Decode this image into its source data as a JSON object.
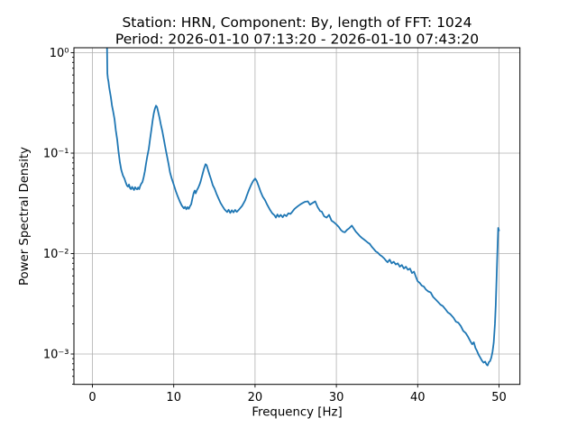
{
  "figure": {
    "background": "#ffffff"
  },
  "colors": {
    "line": "#1f77b4",
    "grid": "#b0b0b0",
    "axis": "#000000",
    "text": "#000000"
  },
  "chart_data": {
    "type": "line",
    "title_line1": "Station: HRN, Component: By, length of FFT: 1024",
    "title_line2": "Period: 2026-01-10 07:13:20 - 2026-01-10 07:43:20",
    "xlabel": "Frequency [Hz]",
    "ylabel": "Power Spectral Density",
    "x_tick_labels": [
      "0",
      "10",
      "20",
      "30",
      "40",
      "50"
    ],
    "y_tick_labels": [
      "10⁰",
      "10⁻¹",
      "10⁻²",
      "10⁻³"
    ],
    "x_ticks": [
      0,
      10,
      20,
      30,
      40,
      50
    ],
    "y_ticks": [
      1,
      0.1,
      0.01,
      0.001
    ],
    "xlim": [
      -2.3,
      52.7
    ],
    "ylim": [
      0.0005,
      1.12
    ],
    "y_scale": "log",
    "grid": true,
    "legend": false,
    "series": [
      {
        "name": "psd",
        "color": "#1f77b4",
        "points": [
          [
            1.8,
            1.12
          ],
          [
            1.82,
            0.8
          ],
          [
            1.84,
            0.62
          ],
          [
            1.9,
            0.555
          ],
          [
            1.97,
            0.52
          ],
          [
            2.05,
            0.46
          ],
          [
            2.15,
            0.41
          ],
          [
            2.27,
            0.36
          ],
          [
            2.4,
            0.3
          ],
          [
            2.55,
            0.26
          ],
          [
            2.72,
            0.218
          ],
          [
            2.88,
            0.168
          ],
          [
            3.05,
            0.136
          ],
          [
            3.2,
            0.105
          ],
          [
            3.38,
            0.081
          ],
          [
            3.55,
            0.068
          ],
          [
            3.75,
            0.06
          ],
          [
            3.94,
            0.0558
          ],
          [
            4.1,
            0.051
          ],
          [
            4.25,
            0.0475
          ],
          [
            4.38,
            0.0464
          ],
          [
            4.5,
            0.0487
          ],
          [
            4.62,
            0.045
          ],
          [
            4.75,
            0.0438
          ],
          [
            4.88,
            0.0462
          ],
          [
            5.0,
            0.0445
          ],
          [
            5.12,
            0.043
          ],
          [
            5.25,
            0.0458
          ],
          [
            5.38,
            0.0442
          ],
          [
            5.5,
            0.0436
          ],
          [
            5.62,
            0.0455
          ],
          [
            5.75,
            0.0438
          ],
          [
            5.88,
            0.0472
          ],
          [
            6.0,
            0.0495
          ],
          [
            6.15,
            0.0515
          ],
          [
            6.3,
            0.0575
          ],
          [
            6.45,
            0.066
          ],
          [
            6.6,
            0.079
          ],
          [
            6.75,
            0.093
          ],
          [
            6.93,
            0.11
          ],
          [
            7.1,
            0.14
          ],
          [
            7.25,
            0.17
          ],
          [
            7.4,
            0.21
          ],
          [
            7.55,
            0.25
          ],
          [
            7.7,
            0.28
          ],
          [
            7.82,
            0.297
          ],
          [
            7.95,
            0.287
          ],
          [
            8.1,
            0.255
          ],
          [
            8.25,
            0.225
          ],
          [
            8.4,
            0.195
          ],
          [
            8.6,
            0.165
          ],
          [
            8.8,
            0.135
          ],
          [
            9.0,
            0.11
          ],
          [
            9.15,
            0.0955
          ],
          [
            9.35,
            0.079
          ],
          [
            9.55,
            0.064
          ],
          [
            9.75,
            0.056
          ],
          [
            10.03,
            0.0478
          ],
          [
            10.25,
            0.042
          ],
          [
            10.5,
            0.037
          ],
          [
            10.75,
            0.033
          ],
          [
            11.0,
            0.03
          ],
          [
            11.25,
            0.0282
          ],
          [
            11.4,
            0.0292
          ],
          [
            11.55,
            0.0276
          ],
          [
            11.7,
            0.029
          ],
          [
            11.85,
            0.0279
          ],
          [
            12.0,
            0.0296
          ],
          [
            12.15,
            0.031
          ],
          [
            12.3,
            0.0355
          ],
          [
            12.45,
            0.04
          ],
          [
            12.58,
            0.0424
          ],
          [
            12.7,
            0.0398
          ],
          [
            12.85,
            0.0428
          ],
          [
            13.0,
            0.045
          ],
          [
            13.15,
            0.048
          ],
          [
            13.3,
            0.052
          ],
          [
            13.5,
            0.06
          ],
          [
            13.7,
            0.069
          ],
          [
            13.91,
            0.0776
          ],
          [
            14.05,
            0.0758
          ],
          [
            14.2,
            0.069
          ],
          [
            14.4,
            0.061
          ],
          [
            14.6,
            0.0545
          ],
          [
            14.8,
            0.048
          ],
          [
            15.02,
            0.0443
          ],
          [
            15.25,
            0.0395
          ],
          [
            15.5,
            0.0355
          ],
          [
            15.75,
            0.032
          ],
          [
            16.0,
            0.0296
          ],
          [
            16.25,
            0.0275
          ],
          [
            16.57,
            0.0259
          ],
          [
            16.75,
            0.0273
          ],
          [
            16.95,
            0.0254
          ],
          [
            17.15,
            0.027
          ],
          [
            17.35,
            0.0257
          ],
          [
            17.55,
            0.0272
          ],
          [
            17.75,
            0.026
          ],
          [
            17.95,
            0.027
          ],
          [
            18.15,
            0.0282
          ],
          [
            18.4,
            0.0298
          ],
          [
            18.6,
            0.0318
          ],
          [
            18.79,
            0.034
          ],
          [
            19.0,
            0.038
          ],
          [
            19.25,
            0.043
          ],
          [
            19.5,
            0.048
          ],
          [
            19.75,
            0.0525
          ],
          [
            20.01,
            0.0559
          ],
          [
            20.2,
            0.053
          ],
          [
            20.45,
            0.0468
          ],
          [
            20.7,
            0.041
          ],
          [
            20.95,
            0.0368
          ],
          [
            21.23,
            0.034
          ],
          [
            21.5,
            0.0306
          ],
          [
            21.8,
            0.0276
          ],
          [
            22.1,
            0.0253
          ],
          [
            22.4,
            0.024
          ],
          [
            22.56,
            0.0228
          ],
          [
            22.75,
            0.0245
          ],
          [
            22.95,
            0.0232
          ],
          [
            23.15,
            0.0243
          ],
          [
            23.4,
            0.023
          ],
          [
            23.6,
            0.0244
          ],
          [
            23.85,
            0.0236
          ],
          [
            24.1,
            0.0252
          ],
          [
            24.35,
            0.0248
          ],
          [
            24.6,
            0.0262
          ],
          [
            24.85,
            0.0278
          ],
          [
            25.1,
            0.0289
          ],
          [
            25.35,
            0.03
          ],
          [
            25.6,
            0.031
          ],
          [
            25.89,
            0.032
          ],
          [
            26.15,
            0.0328
          ],
          [
            26.5,
            0.0331
          ],
          [
            26.75,
            0.0307
          ],
          [
            27.1,
            0.032
          ],
          [
            27.4,
            0.0331
          ],
          [
            27.7,
            0.029
          ],
          [
            28.0,
            0.0265
          ],
          [
            28.2,
            0.0262
          ],
          [
            28.5,
            0.0235
          ],
          [
            28.8,
            0.0228
          ],
          [
            29.1,
            0.0243
          ],
          [
            29.4,
            0.0213
          ],
          [
            29.7,
            0.0205
          ],
          [
            30.0,
            0.0195
          ],
          [
            30.3,
            0.0184
          ],
          [
            30.55,
            0.0172
          ],
          [
            30.8,
            0.0165
          ],
          [
            31.05,
            0.0163
          ],
          [
            31.3,
            0.0172
          ],
          [
            31.55,
            0.0178
          ],
          [
            31.9,
            0.019
          ],
          [
            32.15,
            0.0177
          ],
          [
            32.4,
            0.0165
          ],
          [
            32.65,
            0.0157
          ],
          [
            32.9,
            0.0149
          ],
          [
            33.15,
            0.0143
          ],
          [
            33.4,
            0.0138
          ],
          [
            33.65,
            0.0133
          ],
          [
            33.9,
            0.0128
          ],
          [
            34.1,
            0.0125
          ],
          [
            34.35,
            0.0117
          ],
          [
            34.6,
            0.0111
          ],
          [
            34.85,
            0.0105
          ],
          [
            35.1,
            0.0102
          ],
          [
            35.35,
            0.0097
          ],
          [
            35.6,
            0.0094
          ],
          [
            35.85,
            0.009
          ],
          [
            36.1,
            0.0085
          ],
          [
            36.3,
            0.0082
          ],
          [
            36.55,
            0.0087
          ],
          [
            36.8,
            0.008
          ],
          [
            37.05,
            0.0083
          ],
          [
            37.3,
            0.0078
          ],
          [
            37.55,
            0.008
          ],
          [
            37.8,
            0.0074
          ],
          [
            38.05,
            0.0077
          ],
          [
            38.3,
            0.0071
          ],
          [
            38.55,
            0.0074
          ],
          [
            38.8,
            0.0069
          ],
          [
            39.05,
            0.0071
          ],
          [
            39.3,
            0.0064
          ],
          [
            39.55,
            0.0066
          ],
          [
            39.8,
            0.0058
          ],
          [
            40.0,
            0.0053
          ],
          [
            40.25,
            0.0051
          ],
          [
            40.5,
            0.0048
          ],
          [
            40.75,
            0.0047
          ],
          [
            41.0,
            0.0044
          ],
          [
            41.3,
            0.0042
          ],
          [
            41.6,
            0.0041
          ],
          [
            41.9,
            0.0037
          ],
          [
            42.2,
            0.0035
          ],
          [
            42.5,
            0.0033
          ],
          [
            42.8,
            0.0031
          ],
          [
            43.1,
            0.003
          ],
          [
            43.4,
            0.0028
          ],
          [
            43.7,
            0.0026
          ],
          [
            44.0,
            0.0025
          ],
          [
            44.4,
            0.0023
          ],
          [
            44.7,
            0.0021
          ],
          [
            45.0,
            0.00205
          ],
          [
            45.3,
            0.0019
          ],
          [
            45.6,
            0.0017
          ],
          [
            45.9,
            0.00162
          ],
          [
            46.2,
            0.00148
          ],
          [
            46.5,
            0.00133
          ],
          [
            46.7,
            0.00125
          ],
          [
            46.9,
            0.00131
          ],
          [
            47.1,
            0.00115
          ],
          [
            47.3,
            0.00107
          ],
          [
            47.5,
            0.00098
          ],
          [
            47.7,
            0.00092
          ],
          [
            47.9,
            0.00086
          ],
          [
            48.1,
            0.00082
          ],
          [
            48.3,
            0.00084
          ],
          [
            48.45,
            0.00079
          ],
          [
            48.6,
            0.00077
          ],
          [
            48.75,
            0.00083
          ],
          [
            48.9,
            0.00085
          ],
          [
            49.05,
            0.00092
          ],
          [
            49.2,
            0.00105
          ],
          [
            49.35,
            0.0013
          ],
          [
            49.5,
            0.002
          ],
          [
            49.6,
            0.0031
          ],
          [
            49.7,
            0.0056
          ],
          [
            49.8,
            0.0103
          ],
          [
            49.9,
            0.018
          ],
          [
            50.0,
            0.017
          ]
        ]
      }
    ]
  }
}
